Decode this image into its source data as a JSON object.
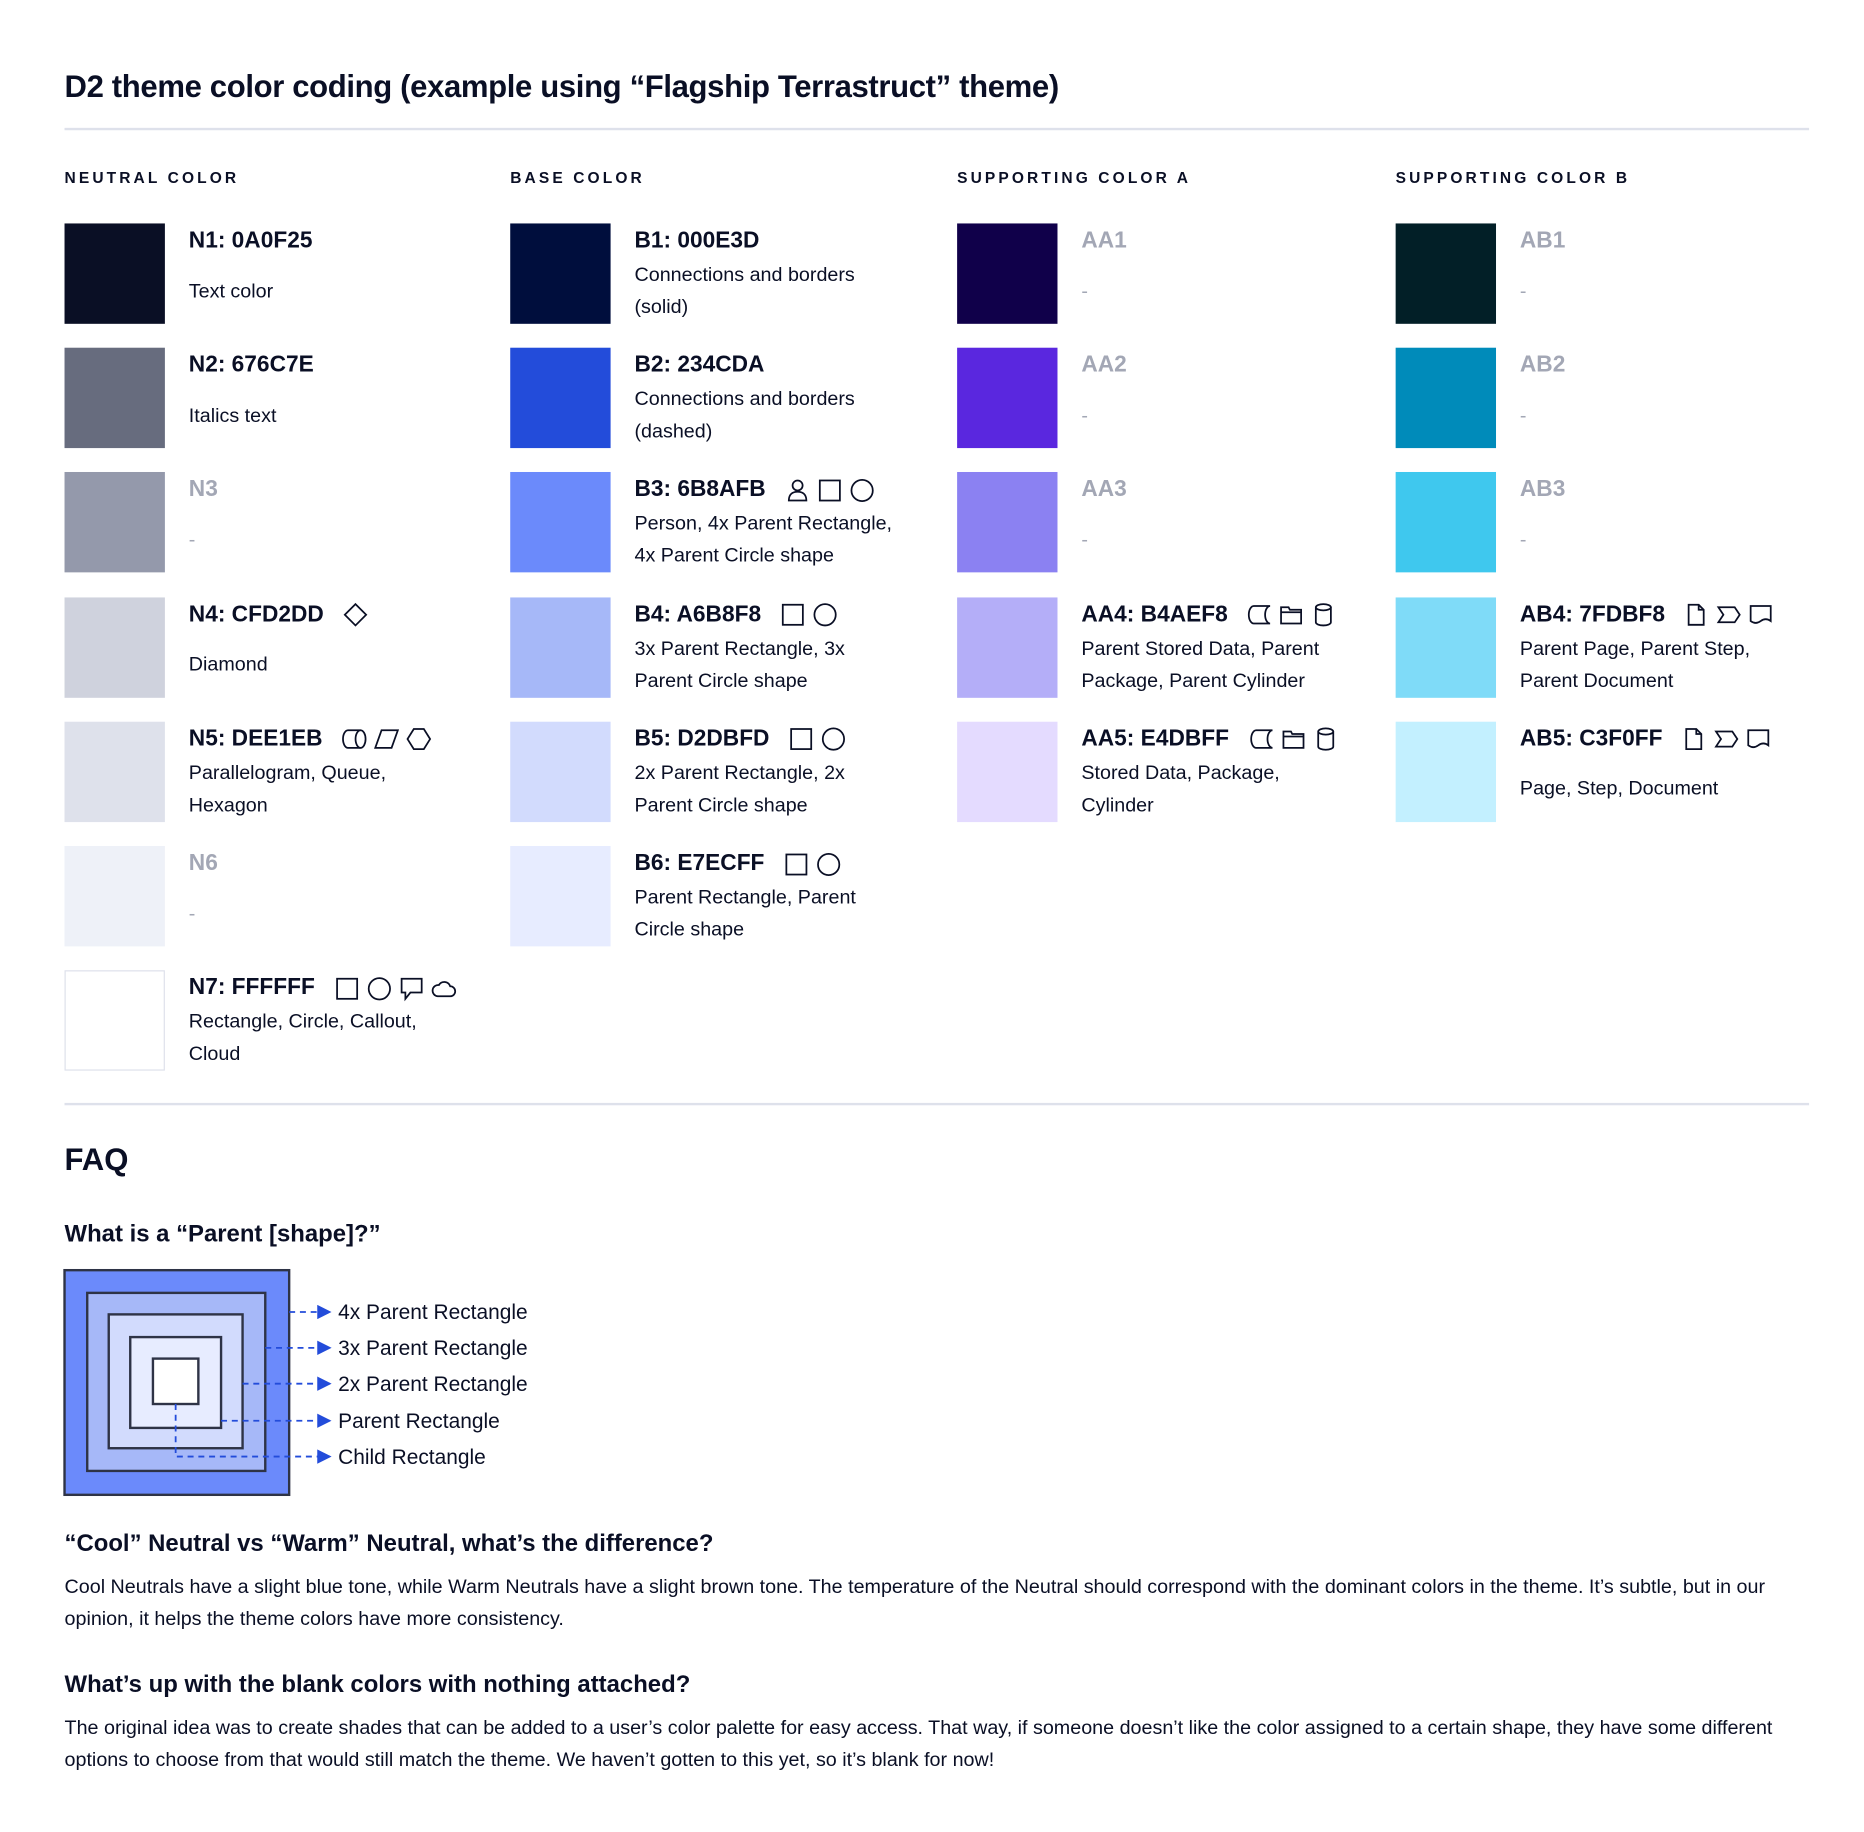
{
  "title": "D2 theme color coding (example using “Flagship Terrastruct” theme)",
  "columns": [
    {
      "header": "NEUTRAL COLOR",
      "items": [
        {
          "label": "N1: 0A0F25",
          "color": "#0A0F25",
          "desc": [
            "Text color"
          ],
          "icons": []
        },
        {
          "label": "N2: 676C7E",
          "color": "#676C7E",
          "desc": [
            "Italics text"
          ],
          "icons": []
        },
        {
          "label": "N3",
          "color": "#9499AB",
          "desc": [
            "-"
          ],
          "icons": [],
          "blank": true
        },
        {
          "label": "N4: CFD2DD",
          "color": "#CFD2DD",
          "desc": [
            "Diamond"
          ],
          "icons": [
            "diamond"
          ]
        },
        {
          "label": "N5: DEE1EB",
          "color": "#DEE1EB",
          "desc": [
            "Parallelogram, Queue,",
            "Hexagon"
          ],
          "icons": [
            "queue",
            "parallelogram",
            "hexagon"
          ]
        },
        {
          "label": "N6",
          "color": "#EEF1F8",
          "desc": [
            "-"
          ],
          "icons": [],
          "blank": true
        },
        {
          "label": "N7: FFFFFF",
          "color": "#FFFFFF",
          "desc": [
            "Rectangle, Circle, Callout,",
            "Cloud"
          ],
          "icons": [
            "rectangle",
            "circle",
            "callout",
            "cloud"
          ]
        }
      ]
    },
    {
      "header": "BASE COLOR",
      "items": [
        {
          "label": "B1: 000E3D",
          "color": "#000E3D",
          "desc": [
            "Connections and borders",
            "(solid)"
          ],
          "icons": []
        },
        {
          "label": "B2: 234CDA",
          "color": "#234CDA",
          "desc": [
            "Connections and borders",
            "(dashed)"
          ],
          "icons": []
        },
        {
          "label": "B3: 6B8AFB",
          "color": "#6B8AFB",
          "desc": [
            "Person, 4x Parent Rectangle,",
            "4x Parent Circle shape"
          ],
          "icons": [
            "person",
            "rectangle",
            "circle"
          ]
        },
        {
          "label": "B4: A6B8F8",
          "color": "#A6B8F8",
          "desc": [
            "3x Parent Rectangle, 3x",
            "Parent Circle shape"
          ],
          "icons": [
            "rectangle",
            "circle"
          ]
        },
        {
          "label": "B5: D2DBFD",
          "color": "#D2DBFD",
          "desc": [
            "2x Parent Rectangle, 2x",
            "Parent Circle shape"
          ],
          "icons": [
            "rectangle",
            "circle"
          ]
        },
        {
          "label": "B6: E7ECFF",
          "color": "#E7ECFF",
          "desc": [
            "Parent Rectangle, Parent",
            "Circle shape"
          ],
          "icons": [
            "rectangle",
            "circle"
          ]
        }
      ]
    },
    {
      "header": "SUPPORTING COLOR A",
      "items": [
        {
          "label": "AA1",
          "color": "#10004A",
          "desc": [
            "-"
          ],
          "icons": [],
          "blank": true
        },
        {
          "label": "AA2",
          "color": "#5A27DF",
          "desc": [
            "-"
          ],
          "icons": [],
          "blank": true
        },
        {
          "label": "AA3",
          "color": "#8B81F2",
          "desc": [
            "-"
          ],
          "icons": [],
          "blank": true
        },
        {
          "label": "AA4: B4AEF8",
          "color": "#B4AEF8",
          "desc": [
            "Parent Stored Data, Parent",
            "Package,  Parent Cylinder"
          ],
          "icons": [
            "stored-data",
            "package",
            "cylinder"
          ]
        },
        {
          "label": "AA5: E4DBFF",
          "color": "#E4DBFF",
          "desc": [
            "Stored Data, Package,",
            "Cylinder"
          ],
          "icons": [
            "stored-data",
            "package",
            "cylinder"
          ]
        }
      ]
    },
    {
      "header": "SUPPORTING COLOR B",
      "items": [
        {
          "label": "AB1",
          "color": "#021F27",
          "desc": [
            "-"
          ],
          "icons": [],
          "blank": true
        },
        {
          "label": "AB2",
          "color": "#008BBA",
          "desc": [
            "-"
          ],
          "icons": [],
          "blank": true
        },
        {
          "label": "AB3",
          "color": "#3FC8EE",
          "desc": [
            "-"
          ],
          "icons": [],
          "blank": true
        },
        {
          "label": "AB4: 7FDBF8",
          "color": "#7FDBF8",
          "desc": [
            "Parent Page, Parent Step,",
            "Parent Document"
          ],
          "icons": [
            "page",
            "step",
            "document"
          ]
        },
        {
          "label": "AB5: C3F0FF",
          "color": "#C3F0FF",
          "desc": [
            "Page, Step, Document"
          ],
          "icons": [
            "page",
            "step",
            "document"
          ]
        }
      ]
    }
  ],
  "faq": {
    "title": "FAQ",
    "q1": "What is a “Parent [shape]?”",
    "diagram_labels": [
      "4x Parent Rectangle",
      "3x Parent Rectangle",
      "2x Parent Rectangle",
      "Parent Rectangle",
      "Child Rectangle"
    ],
    "diagram_colors": [
      "#6B8AFB",
      "#A6B8F8",
      "#D2DBFD",
      "#E7ECFF",
      "#FFFFFF"
    ],
    "arrow_color": "#234CDA",
    "q2": "“Cool” Neutral vs “Warm” Neutral, what’s the difference?",
    "a2": "Cool Neutrals have a slight blue tone, while Warm Neutrals have a slight brown tone. The temperature of the Neutral should correspond with the dominant colors in the theme. It’s subtle, but in our opinion, it helps the theme colors have more consistency.",
    "q3": "What’s up with the blank colors with nothing attached?",
    "a3": "The original idea was to create shades that can be added to a user’s color palette for easy access. That way, if someone doesn’t like the color assigned to a certain shape, they have some different options to choose from that would still match the theme. We haven’t gotten to this yet, so it’s blank for now!"
  }
}
